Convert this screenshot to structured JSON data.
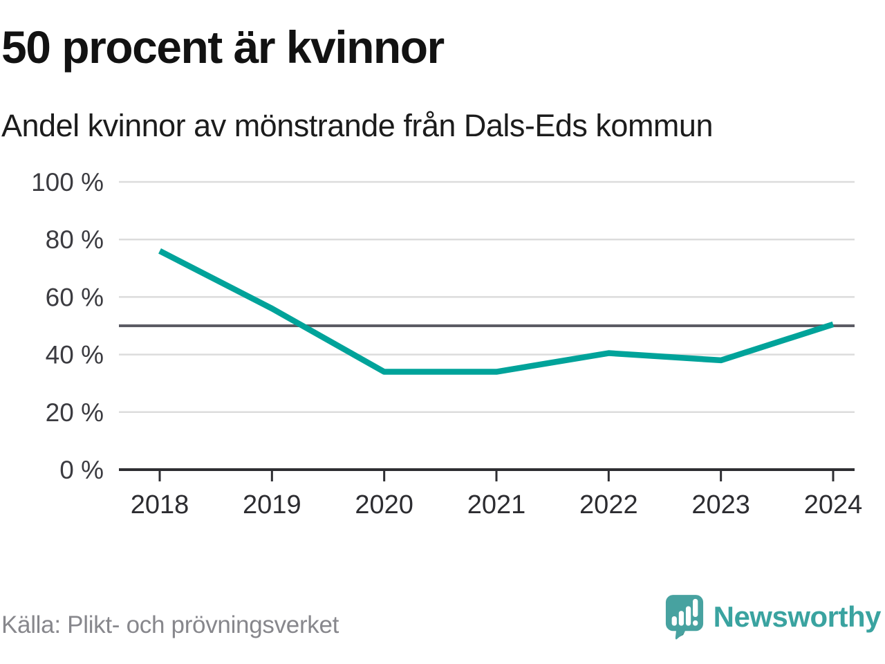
{
  "chart_data": {
    "type": "line",
    "title": "50 procent är kvinnor",
    "subtitle": "Andel kvinnor av mönstrande från Dals-Eds kommun",
    "categories": [
      "2018",
      "2019",
      "2020",
      "2021",
      "2022",
      "2023",
      "2024"
    ],
    "series": [
      {
        "name": "Andel kvinnor",
        "values": [
          76,
          56,
          34,
          34,
          40.5,
          38,
          50.5
        ]
      }
    ],
    "unit": "%",
    "ylim": [
      0,
      100
    ],
    "yticks": [
      0,
      20,
      40,
      60,
      80,
      100
    ],
    "ytick_suffix": " %",
    "reference_line": 50,
    "grid": "horizontal",
    "legend": "none",
    "source": "Källa: Plikt- och prövningsverket",
    "colors": {
      "line": "#00a39a",
      "reference_line": "#5c5c64",
      "gridline": "#dcdcdc",
      "axis": "#2e2e32",
      "ylabel": "#3b3b40",
      "xlabel": "#2c2c30"
    }
  },
  "footer": {
    "logo_text": "Newsworthy",
    "logo_color": "#3aa3a0",
    "logo_icon": "speech-bubble-bar-chart"
  }
}
